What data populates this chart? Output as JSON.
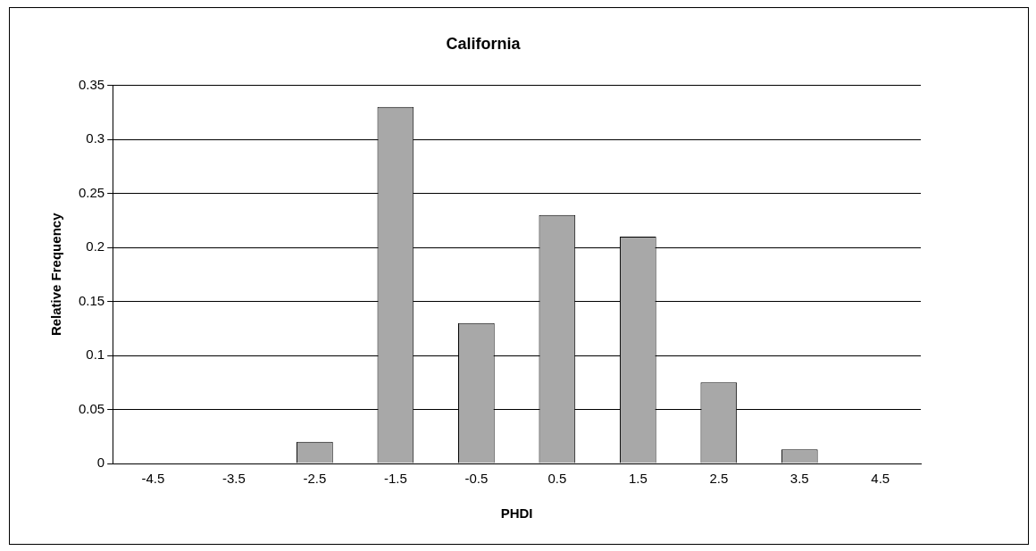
{
  "chart_data": {
    "type": "bar",
    "title": "California",
    "xlabel": "PHDI",
    "ylabel": "Relative Frequency",
    "categories": [
      "-4.5",
      "-3.5",
      "-2.5",
      "-1.5",
      "-0.5",
      "0.5",
      "1.5",
      "2.5",
      "3.5",
      "4.5"
    ],
    "values": [
      0,
      0,
      0.02,
      0.33,
      0.13,
      0.23,
      0.21,
      0.075,
      0.013,
      0
    ],
    "color": "#a8a8a8",
    "ylim": [
      0,
      0.35
    ],
    "yticks": [
      0,
      0.05,
      0.1,
      0.15,
      0.2,
      0.25,
      0.3,
      0.35
    ],
    "grid": "y",
    "legend": false
  }
}
